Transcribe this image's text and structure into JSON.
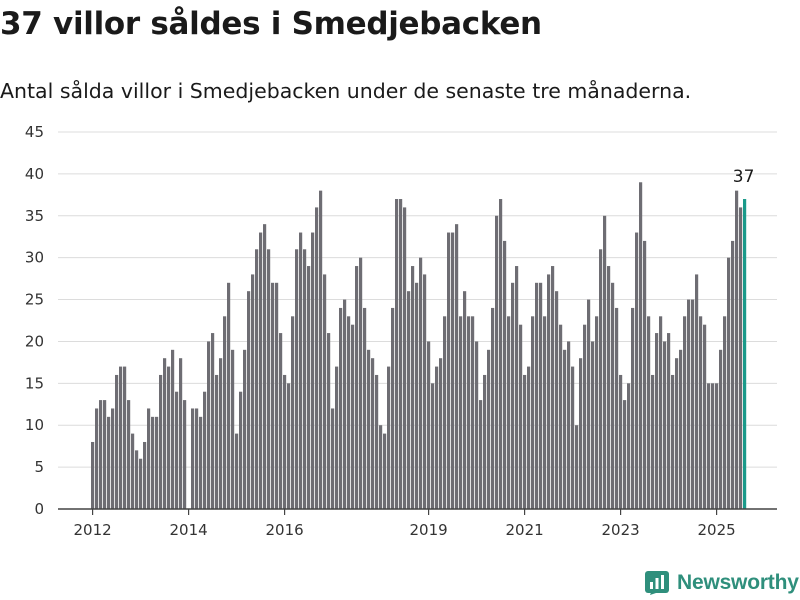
{
  "title": "37 villor såldes i Smedjebacken",
  "subtitle": "Antal sålda villor i Smedjebacken under de senaste tre månaderna.",
  "brand": "Newsworthy",
  "colors": {
    "bar": "#6e6d73",
    "highlight": "#1a9a8a",
    "brand": "#2f8f7c"
  },
  "chart_data": {
    "type": "bar",
    "title": "",
    "xlabel": "",
    "ylabel": "",
    "ylim": [
      0,
      45
    ],
    "yticks": [
      0,
      5,
      10,
      15,
      20,
      25,
      30,
      35,
      40,
      45
    ],
    "xticks": [
      "2012",
      "2014",
      "2016",
      "2019",
      "2021",
      "2023",
      "2025"
    ],
    "grid": true,
    "highlight_last": true,
    "annotation": "37",
    "x_start": "2012-01",
    "values": [
      8,
      12,
      13,
      13,
      11,
      12,
      16,
      17,
      17,
      13,
      9,
      7,
      6,
      8,
      12,
      11,
      11,
      16,
      18,
      17,
      19,
      14,
      18,
      13,
      0,
      12,
      12,
      11,
      14,
      20,
      21,
      16,
      18,
      23,
      27,
      19,
      9,
      14,
      19,
      26,
      28,
      31,
      33,
      34,
      31,
      27,
      27,
      21,
      16,
      15,
      23,
      31,
      33,
      31,
      29,
      33,
      36,
      38,
      28,
      21,
      12,
      17,
      24,
      25,
      23,
      22,
      29,
      30,
      24,
      19,
      18,
      16,
      10,
      9,
      17,
      24,
      37,
      37,
      36,
      26,
      29,
      27,
      30,
      28,
      20,
      15,
      17,
      18,
      23,
      33,
      33,
      34,
      23,
      26,
      23,
      23,
      20,
      13,
      16,
      19,
      24,
      35,
      37,
      32,
      23,
      27,
      29,
      22,
      16,
      17,
      23,
      27,
      27,
      23,
      28,
      29,
      26,
      22,
      19,
      20,
      17,
      10,
      18,
      22,
      25,
      20,
      23,
      31,
      35,
      29,
      27,
      24,
      16,
      13,
      15,
      24,
      33,
      39,
      32,
      23,
      16,
      21,
      23,
      20,
      21,
      16,
      18,
      19,
      23,
      25,
      25,
      28,
      23,
      22,
      15,
      15,
      15,
      19,
      23,
      30,
      32,
      38,
      36,
      37
    ]
  }
}
